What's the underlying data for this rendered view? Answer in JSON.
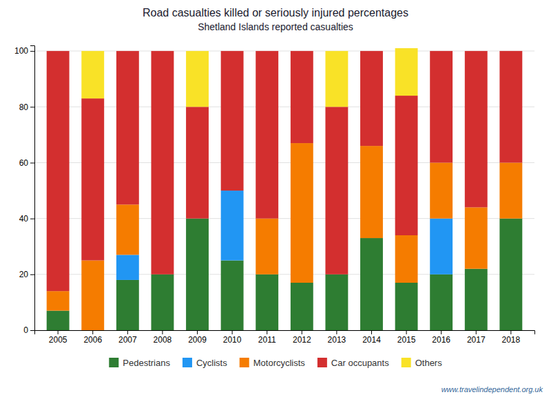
{
  "chart_data": {
    "type": "bar",
    "title": "Road casualties killed or seriously injured percentages",
    "subtitle": "Shetland Islands reported casualties",
    "categories": [
      "2005",
      "2006",
      "2007",
      "2008",
      "2009",
      "2010",
      "2011",
      "2012",
      "2013",
      "2014",
      "2015",
      "2016",
      "2017",
      "2018"
    ],
    "series": [
      {
        "name": "Pedestrians",
        "color": "#2e7d32",
        "values": [
          7,
          0,
          18,
          20,
          40,
          25,
          20,
          17,
          20,
          33,
          17,
          20,
          22,
          40
        ]
      },
      {
        "name": "Cyclists",
        "color": "#2196f3",
        "values": [
          0,
          0,
          9,
          0,
          0,
          25,
          0,
          0,
          0,
          0,
          0,
          20,
          0,
          0
        ]
      },
      {
        "name": "Motorcyclists",
        "color": "#f57c00",
        "values": [
          7,
          25,
          18,
          0,
          0,
          0,
          20,
          50,
          0,
          33,
          17,
          20,
          22,
          20
        ]
      },
      {
        "name": "Car occupants",
        "color": "#d32f2f",
        "values": [
          86,
          58,
          55,
          80,
          40,
          50,
          60,
          33,
          60,
          34,
          50,
          40,
          56,
          40
        ]
      },
      {
        "name": "Others",
        "color": "#f9e227",
        "values": [
          0,
          17,
          0,
          0,
          20,
          0,
          0,
          0,
          20,
          0,
          17,
          0,
          0,
          0
        ]
      }
    ],
    "ylim": [
      0,
      102
    ],
    "yticks": [
      0,
      20,
      40,
      60,
      80,
      100
    ],
    "stacked": true,
    "grid": true,
    "legend": "bottom",
    "annotations": [
      "www.travelindependent.org.uk"
    ]
  }
}
